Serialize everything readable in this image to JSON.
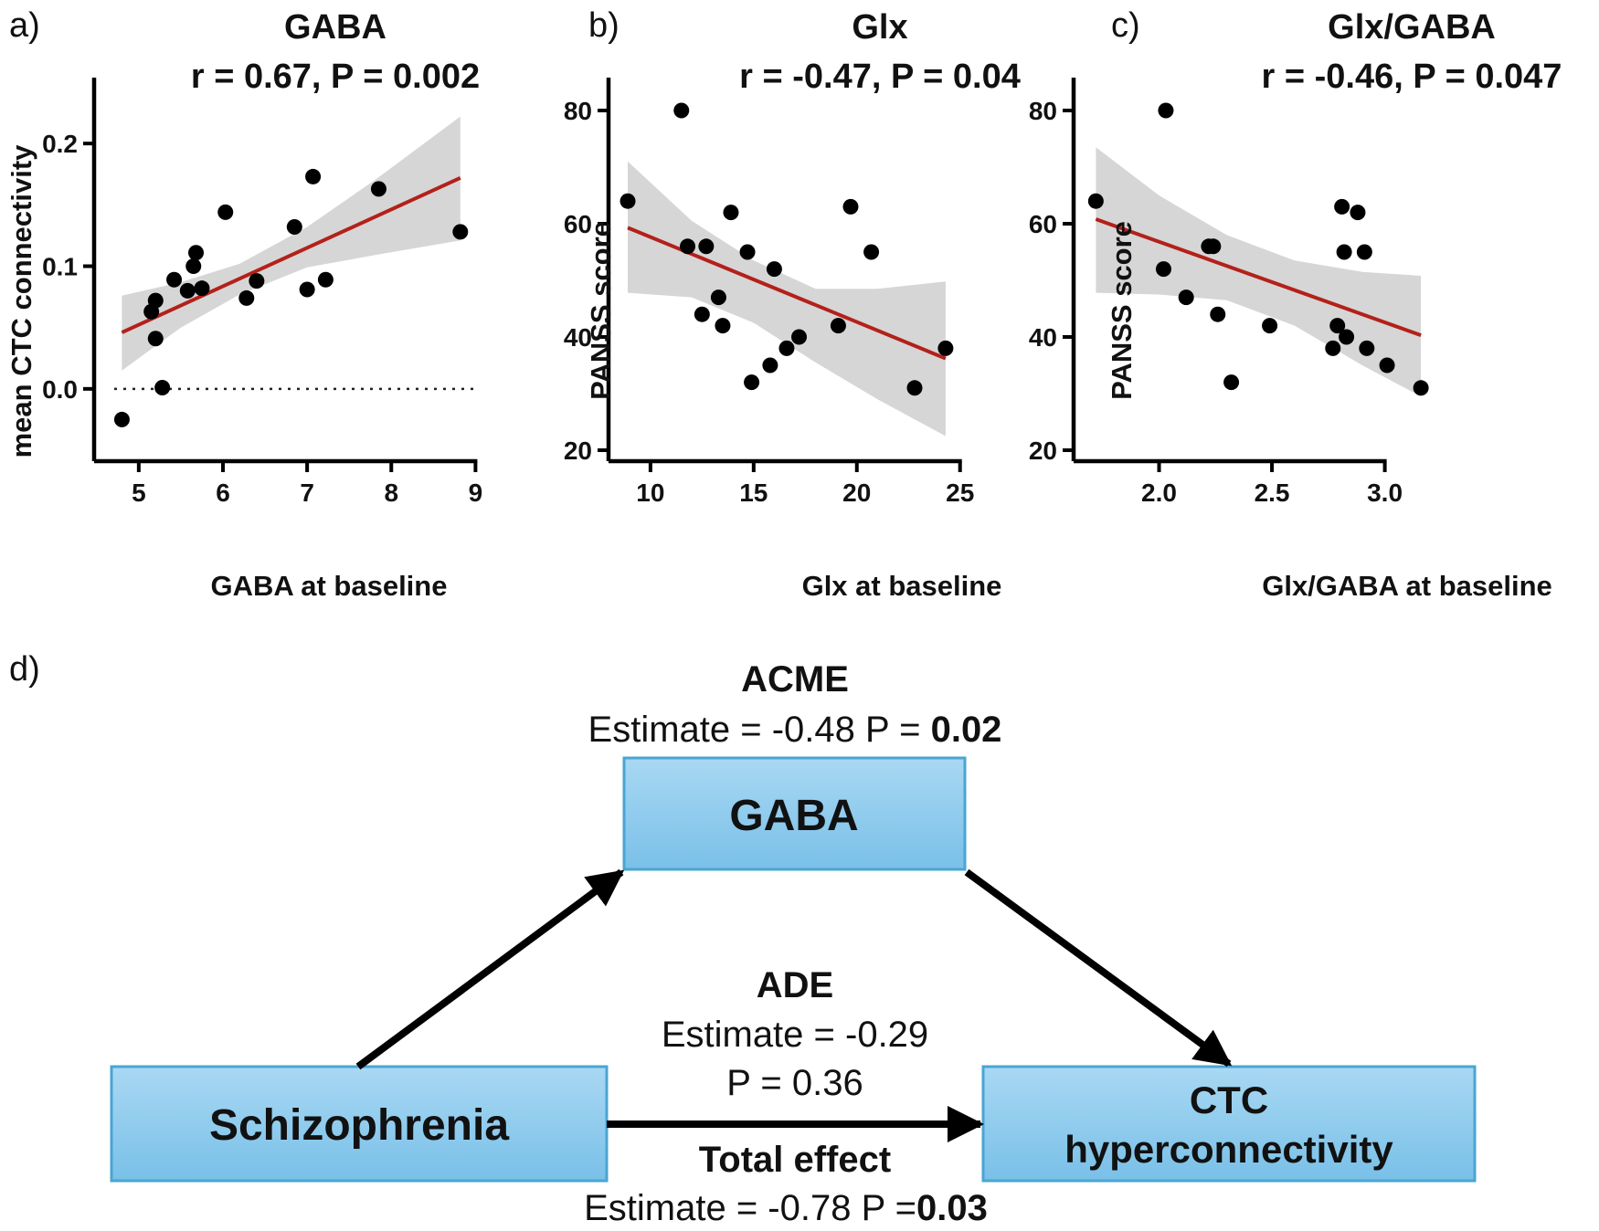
{
  "chart_data": [
    {
      "type": "scatter",
      "panel": "a)",
      "title": "GABA",
      "subtitle": "r = 0.67, P = 0.002",
      "xlabel": "GABA at baseline",
      "ylabel": "mean CTC connectivity",
      "xlim": [
        4.6,
        9.05
      ],
      "ylim": [
        -0.05,
        0.25
      ],
      "xticks": [
        5,
        6,
        7,
        8,
        9
      ],
      "yticks": [
        0.0,
        0.1,
        0.2
      ],
      "ytick_labels": [
        "0.0",
        "0.1",
        "0.2"
      ],
      "zero_line": true,
      "points": [
        [
          4.8,
          -0.025
        ],
        [
          5.15,
          0.063
        ],
        [
          5.2,
          0.072
        ],
        [
          5.2,
          0.041
        ],
        [
          5.28,
          0.001
        ],
        [
          5.42,
          0.089
        ],
        [
          5.58,
          0.08
        ],
        [
          5.65,
          0.1
        ],
        [
          5.68,
          0.111
        ],
        [
          5.75,
          0.082
        ],
        [
          6.03,
          0.144
        ],
        [
          6.28,
          0.074
        ],
        [
          6.4,
          0.088
        ],
        [
          6.85,
          0.132
        ],
        [
          7.0,
          0.081
        ],
        [
          7.07,
          0.173
        ],
        [
          7.22,
          0.089
        ],
        [
          7.85,
          0.163
        ],
        [
          8.82,
          0.128
        ]
      ],
      "fit": [
        [
          4.8,
          0.046
        ],
        [
          8.82,
          0.172
        ]
      ],
      "band_upper": [
        [
          4.8,
          0.076
        ],
        [
          5.5,
          0.087
        ],
        [
          6.2,
          0.102
        ],
        [
          7.0,
          0.132
        ],
        [
          7.8,
          0.17
        ],
        [
          8.82,
          0.222
        ]
      ],
      "band_lower": [
        [
          4.8,
          0.015
        ],
        [
          5.5,
          0.05
        ],
        [
          6.2,
          0.077
        ],
        [
          7.0,
          0.099
        ],
        [
          7.8,
          0.109
        ],
        [
          8.82,
          0.121
        ]
      ]
    },
    {
      "type": "scatter",
      "panel": "b)",
      "title": "Glx",
      "subtitle": "r = -0.47, P = 0.04",
      "xlabel": "Glx at baseline",
      "ylabel": "PANSS score",
      "xlim": [
        8.5,
        25.5
      ],
      "ylim": [
        20,
        85
      ],
      "xticks": [
        10,
        15,
        20,
        25
      ],
      "yticks": [
        20,
        40,
        60,
        80
      ],
      "ytick_labels": [
        "20",
        "40",
        "60",
        "80"
      ],
      "zero_line": false,
      "points": [
        [
          8.9,
          64
        ],
        [
          11.5,
          80
        ],
        [
          11.8,
          56
        ],
        [
          12.5,
          44
        ],
        [
          12.7,
          56
        ],
        [
          13.3,
          47
        ],
        [
          13.5,
          42
        ],
        [
          13.9,
          62
        ],
        [
          14.7,
          55
        ],
        [
          14.9,
          32
        ],
        [
          15.8,
          35
        ],
        [
          16.0,
          52
        ],
        [
          16.6,
          38
        ],
        [
          17.2,
          40
        ],
        [
          19.1,
          42
        ],
        [
          19.7,
          63
        ],
        [
          20.7,
          55
        ],
        [
          22.8,
          31
        ],
        [
          24.3,
          38
        ]
      ],
      "fit": [
        [
          8.9,
          59.3
        ],
        [
          24.3,
          36.2
        ]
      ],
      "band_upper": [
        [
          8.9,
          71
        ],
        [
          12,
          60.5
        ],
        [
          15,
          53.5
        ],
        [
          18,
          48.5
        ],
        [
          21,
          48.5
        ],
        [
          24.3,
          49.8
        ]
      ],
      "band_lower": [
        [
          8.9,
          47.8
        ],
        [
          12,
          47
        ],
        [
          15,
          42.5
        ],
        [
          18,
          35.5
        ],
        [
          21,
          29
        ],
        [
          24.3,
          22.5
        ]
      ]
    },
    {
      "type": "scatter",
      "panel": "c)",
      "title": "Glx/GABA",
      "subtitle": "r = -0.46, P = 0.047",
      "xlabel": "Glx/GABA at baseline",
      "ylabel": "PANSS score",
      "xlim": [
        1.67,
        3.2
      ],
      "ylim": [
        20,
        85
      ],
      "xticks": [
        2.0,
        2.5,
        3.0
      ],
      "xtick_labels": [
        "2.0",
        "2.5",
        "3.0"
      ],
      "yticks": [
        20,
        40,
        60,
        80
      ],
      "ytick_labels": [
        "20",
        "40",
        "60",
        "80"
      ],
      "zero_line": false,
      "points": [
        [
          1.72,
          64
        ],
        [
          2.02,
          52
        ],
        [
          2.03,
          80
        ],
        [
          2.12,
          47
        ],
        [
          2.22,
          56
        ],
        [
          2.24,
          56
        ],
        [
          2.26,
          44
        ],
        [
          2.32,
          32
        ],
        [
          2.49,
          42
        ],
        [
          2.77,
          38
        ],
        [
          2.79,
          42
        ],
        [
          2.81,
          63
        ],
        [
          2.82,
          55
        ],
        [
          2.83,
          40
        ],
        [
          2.88,
          62
        ],
        [
          2.91,
          55
        ],
        [
          2.92,
          38
        ],
        [
          3.01,
          35
        ],
        [
          3.16,
          31
        ]
      ],
      "fit": [
        [
          1.72,
          60.8
        ],
        [
          3.16,
          40.3
        ]
      ],
      "band_upper": [
        [
          1.72,
          73.5
        ],
        [
          2.0,
          65
        ],
        [
          2.3,
          58
        ],
        [
          2.6,
          53.5
        ],
        [
          2.9,
          51.5
        ],
        [
          3.16,
          50.8
        ]
      ],
      "band_lower": [
        [
          1.72,
          47.8
        ],
        [
          2.0,
          47.5
        ],
        [
          2.3,
          46.5
        ],
        [
          2.6,
          42
        ],
        [
          2.9,
          35
        ],
        [
          3.16,
          29.5
        ]
      ]
    }
  ],
  "diagram": {
    "panel_label": "d)",
    "acme": {
      "title": "ACME",
      "estimate_text": "Estimate = -0.48 P = ",
      "p_value": "0.02"
    },
    "mediator_box": "GABA",
    "predictor_box": "Schizophrenia",
    "outcome_box_line1": "CTC",
    "outcome_box_line2": "hyperconnectivity",
    "ade": {
      "title": "ADE",
      "estimate_text": "Estimate = -0.29",
      "p_text": "P = 0.36"
    },
    "total": {
      "title": "Total effect",
      "estimate_text": "Estimate = -0.78 P =",
      "p_value": "0.03"
    },
    "colors": {
      "box_fill_top": "#a9d8f3",
      "box_fill_bottom": "#79c0e8",
      "box_stroke": "#4aa5d3",
      "arrow": "#000000",
      "fit_line": "#b3211a",
      "band": "#d6d6d6",
      "point": "#000000"
    }
  }
}
